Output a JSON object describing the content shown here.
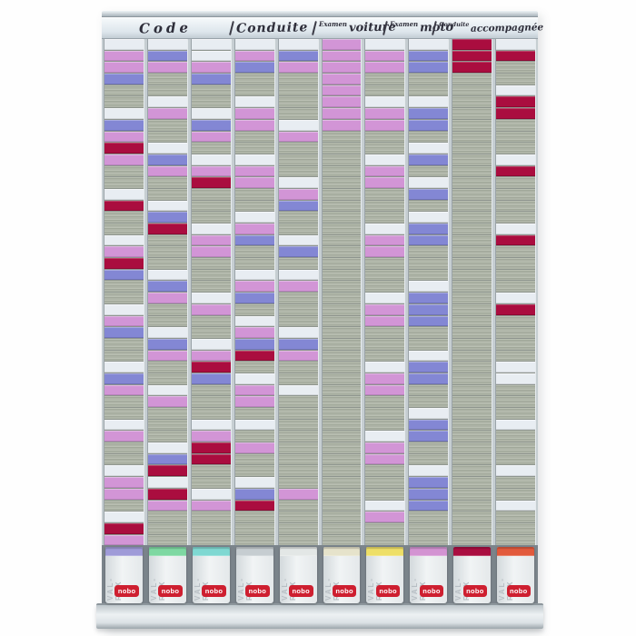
{
  "board": {
    "product": "T-card planning board",
    "brand": "nobo",
    "holder_text": "VAL-REX",
    "header_labels": [
      {
        "small": "",
        "main": "Code"
      },
      {
        "small": "",
        "main": "Conduite"
      },
      {
        "small": "Examen",
        "main": "voiture"
      },
      {
        "small": "Examen",
        "main": "moto"
      },
      {
        "small": "Conduite",
        "main": "accompagnée"
      }
    ],
    "card_colors": {
      "W": "#e8edf2",
      "P": "#d295d6",
      "B": "#8387d4",
      "R": "#aa0d3f",
      "G": "#abb1a5"
    },
    "card_color_names": {
      "W": "white-card",
      "P": "pink-card",
      "B": "periwinkle-card",
      "R": "crimson-card",
      "G": "empty-slot"
    },
    "columns": [
      {
        "tab_color": "#9f9bd8",
        "slots": "WPPBGGWBPRPGGWRGGWPRBGGWPBGGWBPGGWPGGWPPGWRP"
      },
      {
        "tab_color": "#7ed8a2",
        "slots": "WBPGGWPGGWBPGGWBRGGGWBPGGWBPGGWPGGGWBRWRPGGG"
      },
      {
        "tab_color": "#7fd8d2",
        "slots": "WWPBGGWBPGWPRGGGWPPGGGWPGGWPRBGGGWPRRGGWPGGG"
      },
      {
        "tab_color": "#c6cdd1",
        "slots": "WPBGGWPPGGWPPGGWPBGGWPBGWPBRGWPPGWGPGGWBRGGG"
      },
      {
        "tab_color": "#e3e7e6",
        "slots": "WBPGGGGWPGGGWPBGGWBGWPGGGWBPGGWGGGGGGGGPGGGG"
      },
      {
        "tab_color": "#e6e3cb",
        "slots": "PPPPPPPPGGGGGGGGGGGGGGGGGGGGGGGGGGGGGGGGGGGG"
      },
      {
        "tab_color": "#eedf67",
        "slots": "WPPGGWPPGGWPPGGGWPPGGGWPPGGGWPPGGGWPPGGGWPGG"
      },
      {
        "tab_color": "#d393d2",
        "slots": "WBBGGWBBGWBGWBGWBBGGGWBBBGGWBBGGWBBGGWBBBGGG"
      },
      {
        "tab_color": "#aa0e41",
        "slots": "RRRGGGGGGGGGGGGGGGGGGGGGGGGGGGGGGGGGGGGGGGGG"
      },
      {
        "tab_color": "#e25a3c",
        "slots": "WRGGWRRGGGWRGGGGWRGGGGWRGGGGWWGGGWGGGWGGWGGG"
      }
    ]
  }
}
